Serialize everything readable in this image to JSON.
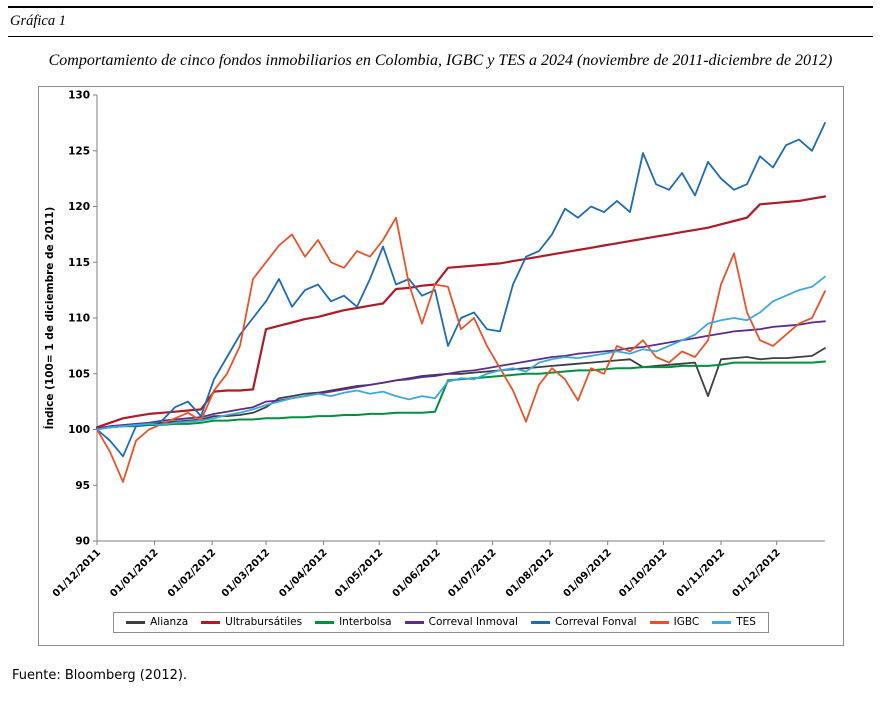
{
  "header": {
    "label": "Gráfica 1"
  },
  "footer": "Fuente: Bloomberg (2012).",
  "chart_data": {
    "type": "line",
    "title": "Comportamiento de cinco fondos inmobiliarios en Colombia, IGBC y TES a 2024 (noviembre de 2011-diciembre de 2012)",
    "ylabel": "Índice (100= 1 de diciembre de 2011)",
    "ylim": [
      90,
      130
    ],
    "y_ticks": [
      90,
      95,
      100,
      105,
      110,
      115,
      120,
      125,
      130
    ],
    "x_tick_labels": [
      "01/12/2011",
      "01/01/2012",
      "01/02/2012",
      "01/03/2012",
      "01/04/2012",
      "01/05/2012",
      "01/06/2012",
      "01/07/2012",
      "01/08/2012",
      "01/09/2012",
      "01/10/2012",
      "01/11/2012",
      "01/12/2012"
    ],
    "x_tick_days": [
      0,
      31,
      62,
      91,
      122,
      152,
      183,
      213,
      244,
      275,
      305,
      336,
      366
    ],
    "span_days": 392,
    "sample_interval_days": 7,
    "grid": false,
    "legend_position": "bottom",
    "axis_color": "#7f7f7f",
    "series": [
      {
        "name": "Alianza",
        "color": "#3f3f3f",
        "stroke_width": 1.8,
        "values": [
          100.0,
          100.2,
          100.3,
          100.4,
          100.5,
          100.6,
          100.7,
          100.8,
          100.9,
          101.2,
          101.2,
          101.3,
          101.5,
          102.0,
          102.8,
          103.0,
          103.2,
          103.3,
          103.5,
          103.7,
          103.9,
          104.0,
          104.2,
          104.4,
          104.6,
          104.8,
          104.9,
          105.0,
          105.0,
          105.1,
          105.2,
          105.3,
          105.4,
          105.5,
          105.6,
          105.7,
          105.8,
          105.9,
          106.0,
          106.1,
          106.2,
          106.3,
          105.6,
          105.7,
          105.8,
          105.9,
          106.0,
          103.0,
          106.3,
          106.4,
          106.5,
          106.3,
          106.4,
          106.4,
          106.5,
          106.6,
          107.3
        ]
      },
      {
        "name": "Ultrabursátiles",
        "color": "#ae1c28",
        "stroke_width": 2.2,
        "values": [
          100.2,
          100.6,
          101.0,
          101.2,
          101.4,
          101.5,
          101.6,
          101.7,
          101.8,
          103.4,
          103.5,
          103.5,
          103.6,
          109.0,
          109.3,
          109.6,
          109.9,
          110.1,
          110.4,
          110.7,
          110.9,
          111.1,
          111.3,
          112.6,
          112.7,
          112.9,
          113.0,
          114.5,
          114.6,
          114.7,
          114.8,
          114.9,
          115.1,
          115.3,
          115.5,
          115.7,
          115.9,
          116.1,
          116.3,
          116.5,
          116.7,
          116.9,
          117.1,
          117.3,
          117.5,
          117.7,
          117.9,
          118.1,
          118.4,
          118.7,
          119.0,
          120.2,
          120.3,
          120.4,
          120.5,
          120.7,
          120.9
        ]
      },
      {
        "name": "Interbolsa",
        "color": "#00913f",
        "stroke_width": 2.0,
        "values": [
          100.1,
          100.2,
          100.3,
          100.3,
          100.4,
          100.4,
          100.5,
          100.5,
          100.6,
          100.8,
          100.8,
          100.9,
          100.9,
          101.0,
          101.0,
          101.1,
          101.1,
          101.2,
          101.2,
          101.3,
          101.3,
          101.4,
          101.4,
          101.5,
          101.5,
          101.5,
          101.6,
          104.4,
          104.5,
          104.6,
          104.7,
          104.8,
          104.9,
          105.0,
          105.0,
          105.1,
          105.2,
          105.3,
          105.3,
          105.4,
          105.5,
          105.5,
          105.6,
          105.6,
          105.6,
          105.7,
          105.7,
          105.7,
          105.8,
          106.0,
          106.0,
          106.0,
          106.0,
          106.0,
          106.0,
          106.0,
          106.1
        ]
      },
      {
        "name": "Correval Inmoval",
        "color": "#5c2d8e",
        "stroke_width": 1.8,
        "values": [
          100.1,
          100.3,
          100.4,
          100.5,
          100.6,
          100.8,
          100.9,
          101.0,
          101.1,
          101.4,
          101.6,
          101.8,
          102.0,
          102.5,
          102.6,
          102.8,
          103.0,
          103.2,
          103.4,
          103.6,
          103.8,
          104.0,
          104.2,
          104.4,
          104.5,
          104.7,
          104.8,
          105.0,
          105.2,
          105.3,
          105.5,
          105.7,
          105.9,
          106.1,
          106.3,
          106.5,
          106.6,
          106.8,
          106.9,
          107.0,
          107.1,
          107.3,
          107.4,
          107.6,
          107.8,
          108.0,
          108.2,
          108.4,
          108.6,
          108.8,
          108.9,
          109.0,
          109.2,
          109.3,
          109.4,
          109.6,
          109.7
        ]
      },
      {
        "name": "Correval Fonval",
        "color": "#1e6cb5",
        "stroke_width": 1.8,
        "values": [
          100.0,
          99.0,
          97.6,
          100.3,
          100.5,
          100.8,
          102.0,
          102.5,
          101.2,
          104.5,
          106.5,
          108.5,
          110.0,
          111.5,
          113.5,
          111.0,
          112.5,
          113.0,
          111.5,
          112.0,
          111.0,
          113.5,
          116.4,
          113.0,
          113.5,
          112.0,
          112.5,
          107.5,
          110.0,
          110.5,
          109.0,
          108.8,
          113.0,
          115.5,
          116.0,
          117.5,
          119.8,
          119.0,
          120.0,
          119.5,
          120.5,
          119.5,
          124.8,
          122.0,
          121.5,
          123.0,
          121.0,
          124.0,
          122.5,
          121.5,
          122.0,
          124.5,
          123.5,
          125.5,
          126.0,
          125.0,
          127.5
        ]
      },
      {
        "name": "IGBC",
        "color": "#e8542a",
        "stroke_width": 1.8,
        "values": [
          100.0,
          98.0,
          95.3,
          99.0,
          100.0,
          100.5,
          101.0,
          101.5,
          100.8,
          103.5,
          105.0,
          107.5,
          113.5,
          115.0,
          116.5,
          117.5,
          115.5,
          117.0,
          115.0,
          114.5,
          116.0,
          115.5,
          117.0,
          119.0,
          113.0,
          109.5,
          113.0,
          112.8,
          109.0,
          110.0,
          107.5,
          105.5,
          103.5,
          100.7,
          104.0,
          105.5,
          104.5,
          102.6,
          105.5,
          105.0,
          107.5,
          107.0,
          108.0,
          106.5,
          106.0,
          107.0,
          106.5,
          108.0,
          113.0,
          115.8,
          110.5,
          108.0,
          107.5,
          108.5,
          109.5,
          110.0,
          112.4
        ]
      },
      {
        "name": "TES",
        "color": "#3ea9dd",
        "stroke_width": 1.8,
        "values": [
          100.0,
          100.2,
          100.3,
          100.4,
          100.5,
          100.4,
          100.6,
          100.7,
          100.8,
          101.0,
          101.3,
          101.5,
          101.8,
          102.2,
          102.5,
          102.8,
          103.0,
          103.2,
          103.0,
          103.3,
          103.5,
          103.2,
          103.4,
          103.0,
          102.7,
          103.0,
          102.8,
          104.3,
          104.6,
          104.5,
          105.0,
          105.3,
          105.5,
          105.2,
          106.0,
          106.3,
          106.5,
          106.4,
          106.6,
          106.8,
          107.0,
          106.8,
          107.2,
          107.0,
          107.5,
          108.0,
          108.5,
          109.5,
          109.8,
          110.0,
          109.8,
          110.5,
          111.5,
          112.0,
          112.5,
          112.8,
          113.7
        ]
      }
    ]
  }
}
